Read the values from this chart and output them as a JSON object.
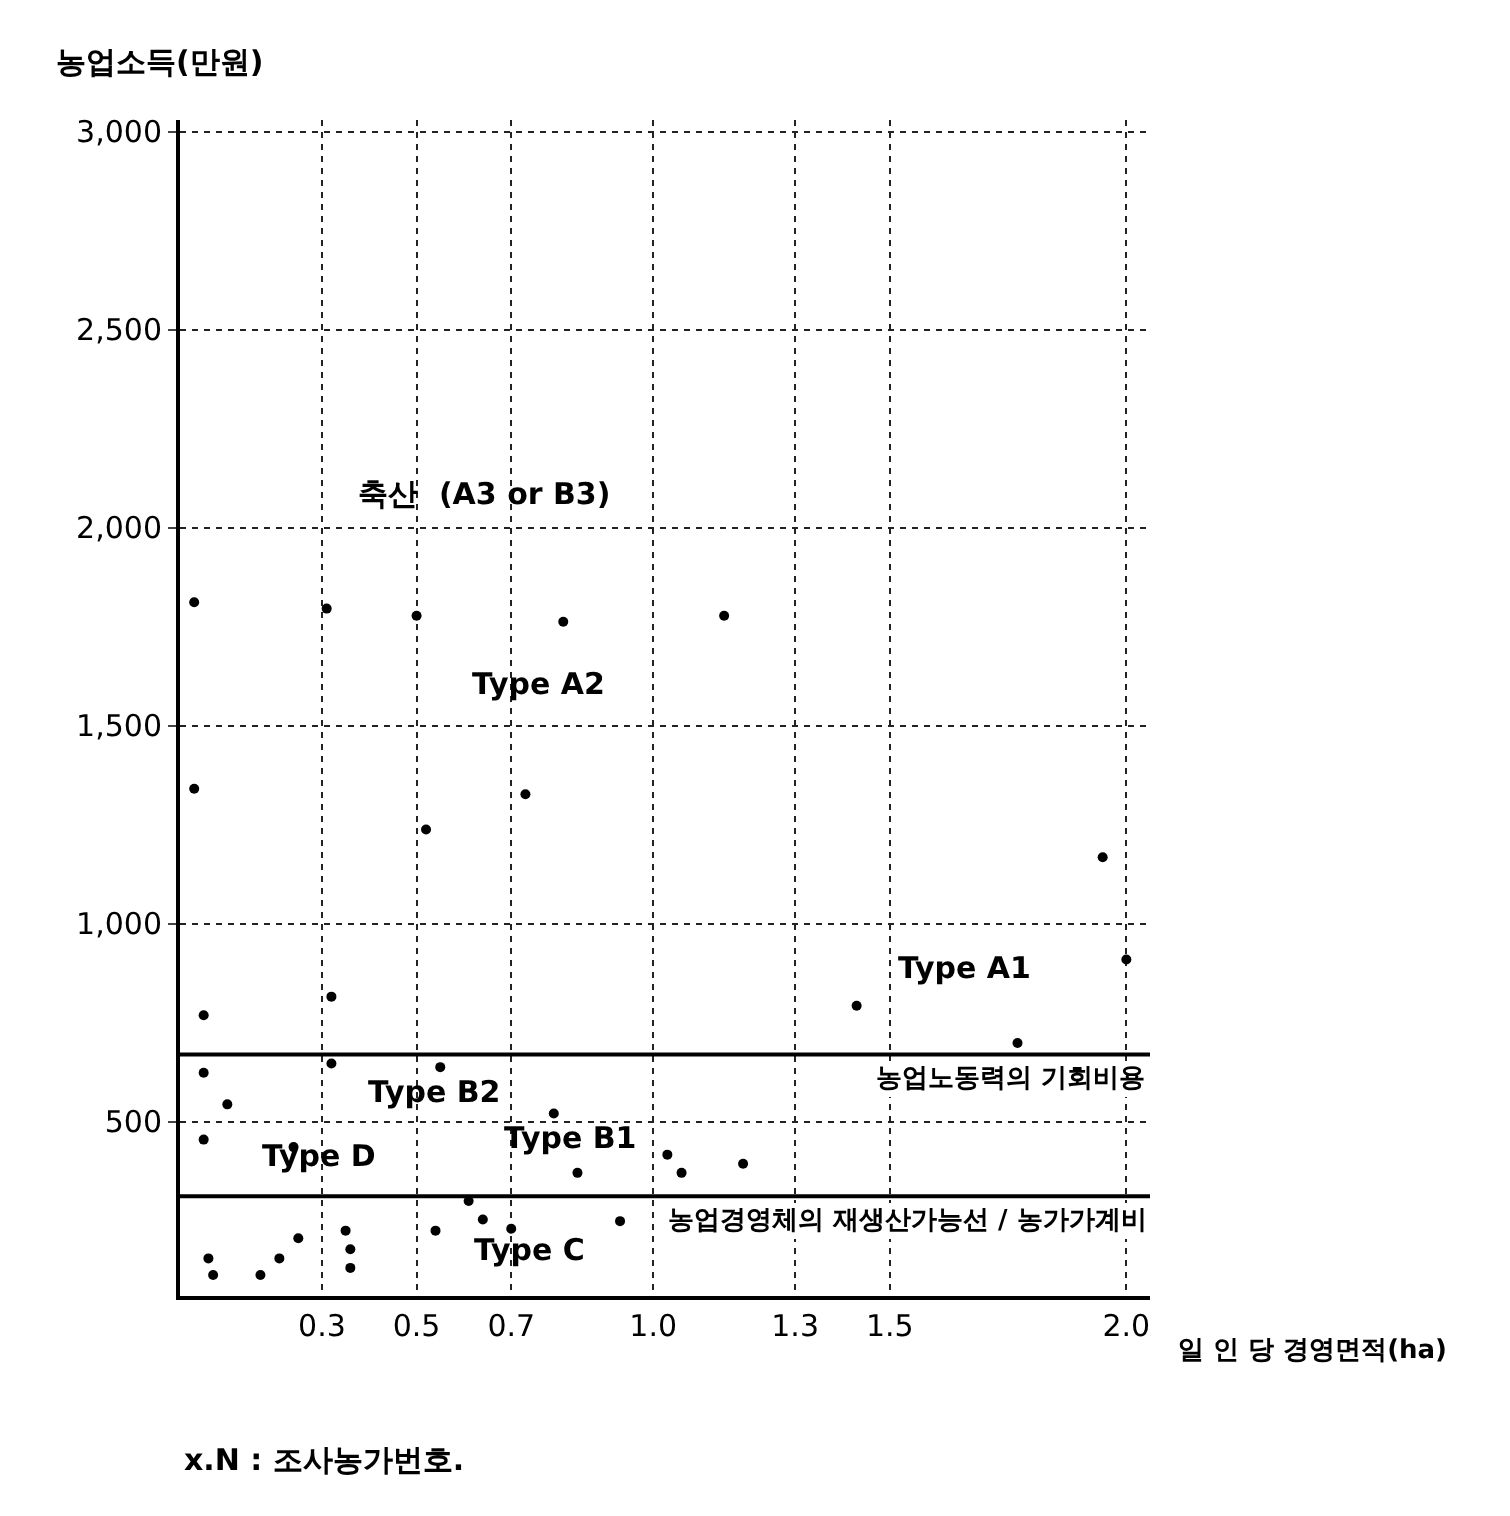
{
  "chart_data": {
    "type": "scatter",
    "ylabel": "농업소득(만원)",
    "xlabel": "일 인 당 경영면적(ha)",
    "x": [
      0.03,
      0.31,
      0.5,
      0.81,
      1.15,
      0.03,
      0.73,
      0.52,
      0.32,
      0.05,
      0.05,
      0.32,
      0.55,
      0.1,
      0.05,
      0.24,
      0.79,
      0.84,
      1.03,
      1.06,
      0.93,
      0.61,
      0.54,
      0.64,
      0.7,
      0.35,
      0.36,
      0.25,
      0.21,
      0.06,
      0.07,
      0.17,
      0.36,
      1.19,
      1.43,
      1.77,
      1.95,
      2.0
    ],
    "values": [
      1812,
      1796,
      1778,
      1763,
      1778,
      1341,
      1327,
      1238,
      816,
      769,
      624,
      647,
      638,
      544,
      455,
      436,
      521,
      371,
      417,
      371,
      249,
      300,
      225,
      253,
      230,
      225,
      178,
      206,
      155,
      155,
      113,
      113,
      131,
      394,
      793,
      699,
      1168,
      910
    ],
    "color": "#000000",
    "marker": "circle",
    "xlim": [
      0,
      2.05
    ],
    "xticks": [
      0.3,
      0.5,
      0.7,
      {
        "value": 1.0,
        "label": "1.0"
      },
      1.3,
      1.5,
      {
        "value": 2.0,
        "label": "2.0"
      }
    ],
    "ylim": [
      60,
      3030
    ],
    "yticks": [
      {
        "value": 500,
        "label": "500"
      },
      {
        "value": 1000,
        "label": "1,000"
      },
      {
        "value": 1500,
        "label": "1,500"
      },
      {
        "value": 2000,
        "label": "2,000"
      },
      {
        "value": 2500,
        "label": "2,500"
      },
      {
        "value": 3000,
        "label": "3,000"
      }
    ],
    "grid": true,
    "ref_lines": [
      {
        "axis": "y",
        "value": 670,
        "label": "농업노동력의 기회비용",
        "color": "#000000"
      },
      {
        "axis": "y",
        "value": 312,
        "label": "농업경영체의 재생산가능선 / 농가가계비",
        "color": "#000000"
      }
    ],
    "annotations": [
      "축산  (A3 or B3)",
      "Type A2",
      "Type A1",
      "Type B2",
      "Type B1",
      "Type D",
      "Type C",
      "x.N : 조사농가번호."
    ]
  }
}
